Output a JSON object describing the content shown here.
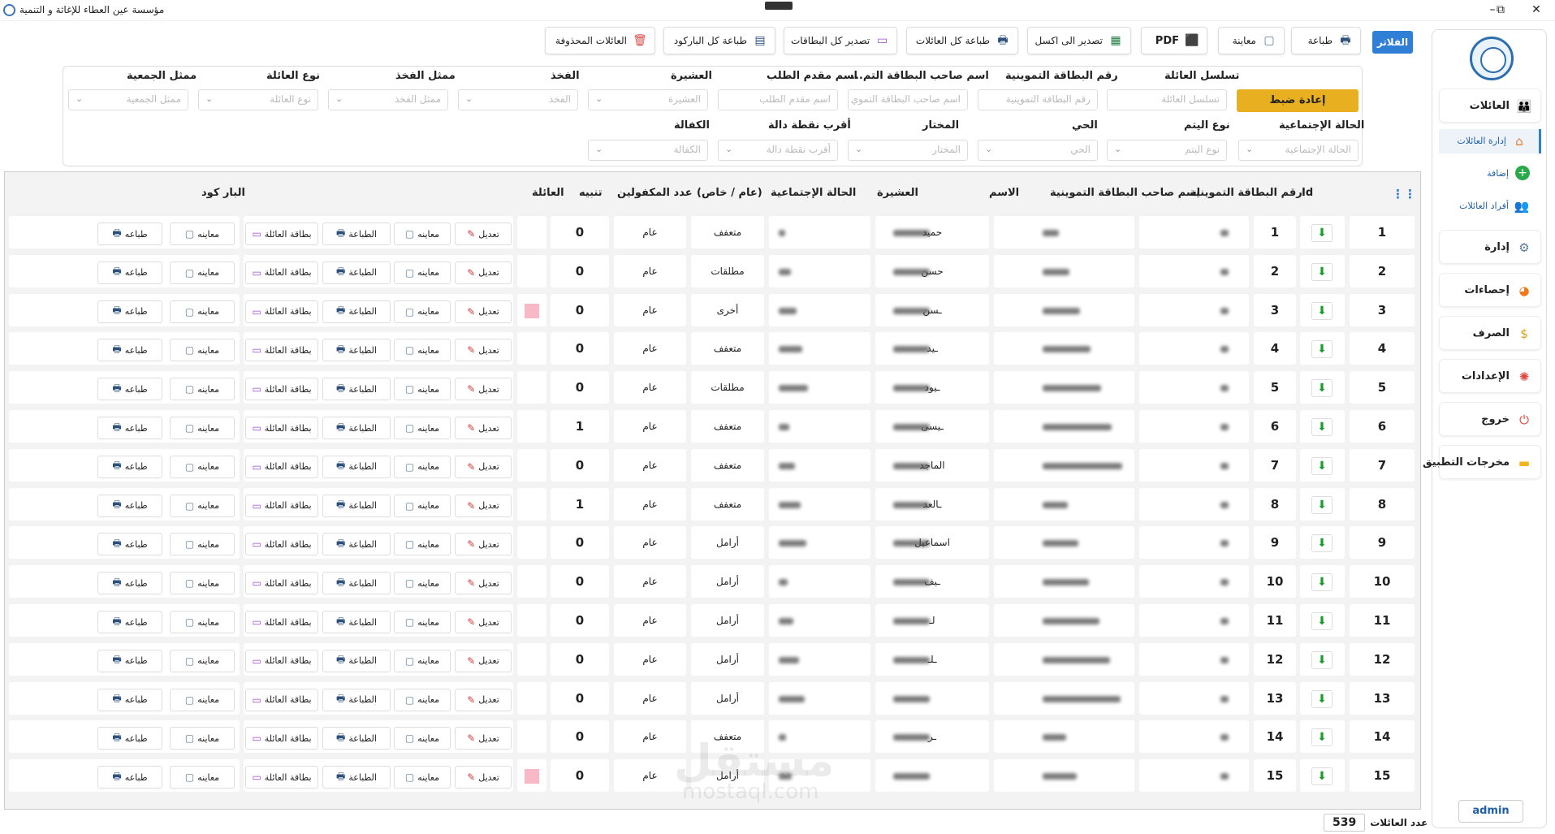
{
  "app": {
    "title": "مؤسسة عين العطاء للإغاثة و التنمية"
  },
  "sidebar": {
    "families": "العائلات",
    "manage_families": "إدارة العائلات",
    "add": "إضافة",
    "family_members": "أفراد العائلات",
    "admin_section": "إدارة",
    "stats": "إحصاءات",
    "spending": "الصرف",
    "settings": "الإعدادات",
    "logout": "خروج",
    "outputs": "مخرجات التطبيق",
    "user": "admin"
  },
  "toolbar": {
    "filters": "الفلاتر",
    "print": "طباعة",
    "preview": "معاينة",
    "pdf": "PDF",
    "export_excel": "تصدير الى اكسل",
    "print_all_families": "طباعة كل العائلات",
    "export_all_cards": "تصدير كل البطاقات",
    "print_all_barcodes": "طباعة كل الباركود",
    "deleted_families": "العائلات المحذوفة"
  },
  "filters": {
    "reset": "إعادة ضبط",
    "family_seq": {
      "label": "تسلسل العائلة",
      "placeholder": "تسلسل العائلة"
    },
    "ration_card_no": {
      "label": "رقم البطاقة التموينية",
      "placeholder": "رقم البطاقة التموينية"
    },
    "card_owner": {
      "label": "اسم صاحب البطاقة التم...",
      "placeholder": "اسم صاحب البطاقة التموي"
    },
    "applicant": {
      "label": "اسم مقدم الطلب",
      "placeholder": "اسم مقدم الطلب"
    },
    "tribe": {
      "label": "العشيرة",
      "placeholder": "العشيرة"
    },
    "clan": {
      "label": "الفخذ",
      "placeholder": "الفخذ"
    },
    "clan_rep": {
      "label": "ممثل الفخذ",
      "placeholder": "ممثل الفخذ"
    },
    "family_type": {
      "label": "نوع العائلة",
      "placeholder": "نوع العائلة"
    },
    "assoc_rep": {
      "label": "ممثل الجمعية",
      "placeholder": "ممثل الجمعية"
    },
    "social_status": {
      "label": "الحالة الإجتماعية",
      "placeholder": "الحالة الإجتماعية"
    },
    "orphan_type": {
      "label": "نوع اليتم",
      "placeholder": "نوع اليتم"
    },
    "district": {
      "label": "الحي",
      "placeholder": "الحي"
    },
    "mukhtar": {
      "label": "المختار",
      "placeholder": "المختار"
    },
    "landmark": {
      "label": "أقرب نقطة دالة",
      "placeholder": "أقرب نقطة دالة"
    },
    "sponsorship": {
      "label": "الكفالة",
      "placeholder": "الكفالة"
    }
  },
  "table": {
    "headers": {
      "id": "Id",
      "card_no": "رقم البطاقة التموينية",
      "card_owner": "اسم صاحب البطاقة التموينية",
      "name": "الاسم",
      "tribe": "العشيرة",
      "social_status": "الحالة الإجتماعية",
      "type": "(عام / خاص)",
      "sponsored": "عدد المكفولين",
      "alert": "تنبيه",
      "family": "العائلة",
      "barcode": "البار كود"
    },
    "actions": {
      "edit": "تعديل",
      "preview": "معاينه",
      "print_family": "الطباعة",
      "family_card": "بطاقة العائلة",
      "barcode_preview": "معاينه",
      "barcode_print": "طباعه"
    },
    "rows": [
      {
        "seq": "1",
        "id": "1",
        "name": "حميد",
        "status": "متعفف",
        "type": "عام",
        "sponsored": "0",
        "alert": false
      },
      {
        "seq": "2",
        "id": "2",
        "name": "حسن",
        "status": "مطلقات",
        "type": "عام",
        "sponsored": "0",
        "alert": false
      },
      {
        "seq": "3",
        "id": "3",
        "name": "ـسن",
        "status": "أخرى",
        "type": "عام",
        "sponsored": "0",
        "alert": true
      },
      {
        "seq": "4",
        "id": "4",
        "name": "ـيد",
        "status": "متعفف",
        "type": "عام",
        "sponsored": "0",
        "alert": false
      },
      {
        "seq": "5",
        "id": "5",
        "name": "ـيود",
        "status": "مطلقات",
        "type": "عام",
        "sponsored": "0",
        "alert": false
      },
      {
        "seq": "6",
        "id": "6",
        "name": "ـيسى",
        "status": "متعفف",
        "type": "عام",
        "sponsored": "1",
        "alert": false
      },
      {
        "seq": "7",
        "id": "7",
        "name": "الماجد",
        "status": "متعفف",
        "type": "عام",
        "sponsored": "0",
        "alert": false
      },
      {
        "seq": "8",
        "id": "8",
        "name": "ـالعد",
        "status": "متعفف",
        "type": "عام",
        "sponsored": "1",
        "alert": false
      },
      {
        "seq": "9",
        "id": "9",
        "name": "اسماعيل",
        "status": "أرامل",
        "type": "عام",
        "sponsored": "0",
        "alert": false
      },
      {
        "seq": "10",
        "id": "10",
        "name": "ـيف",
        "status": "أرامل",
        "type": "عام",
        "sponsored": "0",
        "alert": false
      },
      {
        "seq": "11",
        "id": "11",
        "name": "لـ",
        "status": "أرامل",
        "type": "عام",
        "sponsored": "0",
        "alert": false
      },
      {
        "seq": "12",
        "id": "12",
        "name": "ـلـ",
        "status": "أرامل",
        "type": "عام",
        "sponsored": "0",
        "alert": false
      },
      {
        "seq": "13",
        "id": "13",
        "name": "",
        "status": "أرامل",
        "type": "عام",
        "sponsored": "0",
        "alert": false
      },
      {
        "seq": "14",
        "id": "14",
        "name": "ـر",
        "status": "متعفف",
        "type": "عام",
        "sponsored": "0",
        "alert": false
      },
      {
        "seq": "15",
        "id": "15",
        "name": "",
        "status": "أرامل",
        "type": "عام",
        "sponsored": "0",
        "alert": true
      }
    ]
  },
  "footer": {
    "count_label": "عدد العائلات",
    "count": "539"
  },
  "colors": {
    "accent": "#2f7fd6",
    "reset": "#e8b020",
    "alert": "#f9b8c6",
    "download": "#1a9c2e"
  },
  "watermark": {
    "main": "مستقل",
    "sub": "mostaql.com"
  }
}
